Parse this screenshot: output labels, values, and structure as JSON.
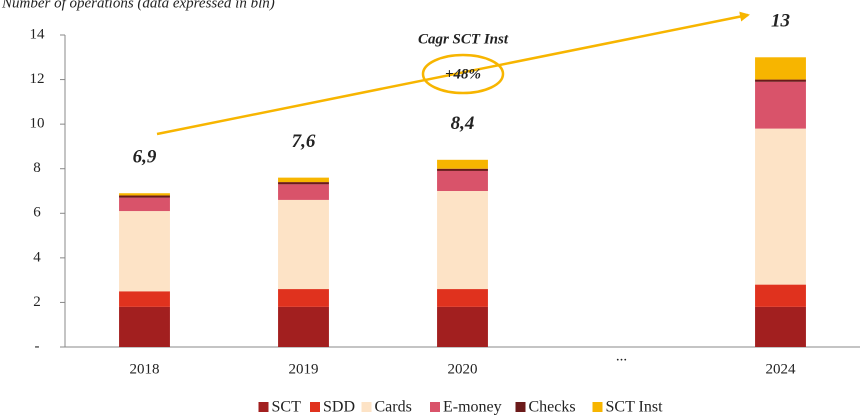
{
  "chart_data": {
    "type": "stacked_bar",
    "title": "Number of operations (data expressed in bln)",
    "categories": [
      "2018",
      "2019",
      "2020",
      "...",
      "2024"
    ],
    "series": [
      {
        "name": "SCT",
        "color": "#a21f1f",
        "values": [
          1.8,
          1.8,
          1.8,
          null,
          1.8
        ]
      },
      {
        "name": "SDD",
        "color": "#e0321e",
        "values": [
          0.7,
          0.8,
          0.8,
          null,
          1.0
        ]
      },
      {
        "name": "Cards",
        "color": "#fde3c6",
        "values": [
          3.6,
          4.0,
          4.4,
          null,
          7.0
        ]
      },
      {
        "name": "E-money",
        "color": "#d9536a",
        "values": [
          0.6,
          0.7,
          0.9,
          null,
          2.1
        ]
      },
      {
        "name": "Checks",
        "color": "#6b1a1a",
        "values": [
          0.1,
          0.1,
          0.1,
          null,
          0.1
        ]
      },
      {
        "name": "SCT Inst",
        "color": "#f7b500",
        "values": [
          0.1,
          0.2,
          0.4,
          null,
          1.0
        ]
      }
    ],
    "totals": [
      6.9,
      7.6,
      8.4,
      null,
      13
    ],
    "total_labels": [
      "6,9",
      "7,6",
      "8,4",
      null,
      "13"
    ],
    "annotations": [
      "Cagr SCT Inst",
      "+48%"
    ],
    "ylim": [
      0,
      14
    ],
    "yticks": [
      {
        "value": 0,
        "label": "-"
      },
      2,
      4,
      6,
      8,
      10,
      12,
      14
    ],
    "legend": "bottom"
  }
}
